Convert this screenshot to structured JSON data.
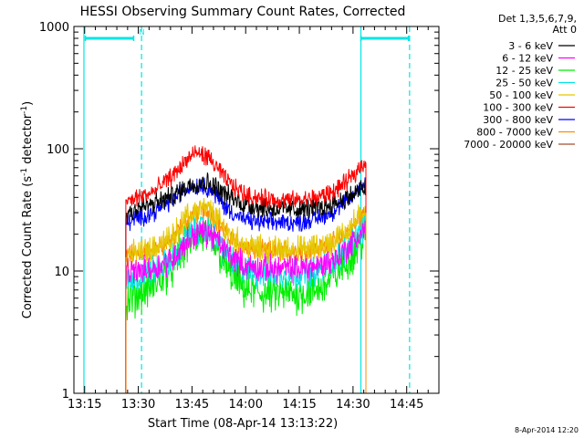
{
  "chart_data": {
    "type": "line",
    "title": "HESSI Observing Summary Count Rates, Corrected",
    "xlabel": "Start Time (08-Apr-14 13:13:22)",
    "ylabel_main": "Corrected Count Rate (s",
    "ylabel_sup1": "-1",
    "ylabel_mid": " detector",
    "ylabel_sup2": "-1",
    "ylabel_end": ")",
    "yscale": "log",
    "xlim_min": [
      13.2,
      14.9
    ],
    "ylim": [
      1,
      1000
    ],
    "grid": false,
    "legend_placement": "right",
    "x_ticks": [
      {
        "min": 795,
        "label": "13:15"
      },
      {
        "min": 810,
        "label": "13:30"
      },
      {
        "min": 825,
        "label": "13:45"
      },
      {
        "min": 840,
        "label": "14:00"
      },
      {
        "min": 855,
        "label": "14:15"
      },
      {
        "min": 870,
        "label": "14:30"
      },
      {
        "min": 885,
        "label": "14:45"
      }
    ],
    "y_ticks": [
      {
        "value": 1,
        "label": "1"
      },
      {
        "value": 10,
        "label": "10"
      },
      {
        "value": 100,
        "label": "100"
      },
      {
        "value": 1000,
        "label": "1000"
      }
    ],
    "legend_header": [
      "Det 1,3,5,6,7,9,",
      "Att 0"
    ],
    "series": [
      {
        "name": "3 - 6 keV",
        "color": "#000000",
        "x": [
          806.5,
          807,
          810,
          814,
          817,
          820,
          822,
          824,
          826,
          828,
          830,
          832,
          834,
          837,
          840,
          845,
          850,
          855,
          860,
          864,
          867,
          870,
          872,
          873.6
        ],
        "y": [
          28,
          30,
          33,
          35,
          38,
          42,
          46,
          50,
          52,
          53,
          52,
          48,
          43,
          38,
          35,
          33,
          32,
          32,
          33,
          35,
          38,
          42,
          46,
          48
        ]
      },
      {
        "name": "6 - 12 keV",
        "color": "#ff00ff",
        "x": [
          806.5,
          807,
          810,
          814,
          817,
          820,
          822,
          824,
          826,
          828,
          830,
          832,
          834,
          837,
          840,
          845,
          850,
          855,
          860,
          864,
          867,
          870,
          872,
          873.6
        ],
        "y": [
          9,
          9.5,
          10,
          10.5,
          11.5,
          13,
          15.5,
          18,
          20,
          21,
          20,
          18,
          15,
          12.5,
          11,
          10.5,
          10.5,
          10.5,
          11,
          12,
          14,
          17,
          20,
          22
        ]
      },
      {
        "name": "12 - 25 keV",
        "color": "#00ee00",
        "x": [
          806.5,
          807,
          810,
          814,
          817,
          820,
          822,
          824,
          826,
          828,
          830,
          832,
          834,
          837,
          840,
          845,
          850,
          855,
          860,
          864,
          867,
          870,
          872,
          873.6
        ],
        "y": [
          5,
          5.5,
          6.5,
          7.5,
          9,
          11,
          14,
          17,
          19,
          19.5,
          18,
          15,
          11.5,
          8.5,
          7,
          6.5,
          6.5,
          6.5,
          7,
          8.5,
          11,
          14,
          17,
          20
        ]
      },
      {
        "name": "25 - 50 keV",
        "color": "#00e5e5",
        "x": [
          806.5,
          807,
          810,
          814,
          817,
          820,
          822,
          824,
          826,
          828,
          830,
          832,
          834,
          837,
          840,
          845,
          850,
          855,
          860,
          864,
          867,
          870,
          872,
          873.6
        ],
        "y": [
          8,
          8.5,
          9,
          10,
          11,
          13,
          16,
          19,
          21,
          22,
          21,
          18,
          14.5,
          11.5,
          10,
          9.5,
          9.5,
          9.5,
          10,
          11.5,
          14,
          18,
          21,
          24
        ]
      },
      {
        "name": "50 - 100 keV",
        "color": "#e5c800",
        "x": [
          806.5,
          807,
          810,
          814,
          817,
          820,
          822,
          824,
          826,
          828,
          830,
          832,
          834,
          837,
          840,
          845,
          850,
          855,
          860,
          864,
          867,
          870,
          872,
          873.6
        ],
        "y": [
          13,
          13.5,
          14,
          15,
          17,
          20,
          24,
          28,
          31,
          32,
          31,
          27,
          22,
          18,
          16,
          15,
          15,
          15,
          15.5,
          17,
          20,
          24,
          28,
          31
        ]
      },
      {
        "name": "100 - 300 keV",
        "color": "#ff0000",
        "x": [
          806.5,
          807,
          810,
          814,
          817,
          820,
          822,
          824,
          826,
          828,
          830,
          832,
          834,
          837,
          840,
          845,
          850,
          855,
          860,
          864,
          867,
          870,
          872,
          873.6
        ],
        "y": [
          35,
          37,
          40,
          44,
          52,
          62,
          72,
          84,
          92,
          90,
          82,
          70,
          58,
          48,
          42,
          39,
          38,
          38,
          40,
          44,
          50,
          60,
          72,
          80
        ]
      },
      {
        "name": "300 - 800 keV",
        "color": "#0000ff",
        "x": [
          806.5,
          807,
          810,
          814,
          817,
          820,
          822,
          824,
          826,
          828,
          830,
          832,
          834,
          837,
          840,
          845,
          850,
          855,
          860,
          864,
          867,
          870,
          872,
          873.6
        ],
        "y": [
          24,
          25,
          27,
          30,
          34,
          39,
          44,
          48,
          50,
          50,
          47,
          41,
          34,
          29,
          26,
          25,
          25,
          25,
          27,
          30,
          35,
          41,
          48,
          53
        ]
      },
      {
        "name": "800 - 7000 keV",
        "color": "#ff8c00",
        "x": [
          806.5,
          807,
          810,
          814,
          817,
          820,
          822,
          824,
          826,
          828,
          830,
          832,
          834,
          837,
          840,
          845,
          850,
          855,
          860,
          864,
          867,
          870,
          872,
          873.6
        ],
        "y": [
          13,
          13.5,
          14,
          15,
          16.5,
          19,
          23,
          27,
          30,
          31,
          30,
          26,
          21,
          17.5,
          15,
          14.5,
          14.5,
          14.5,
          15,
          16.5,
          19,
          23,
          27,
          30
        ]
      },
      {
        "name": "7000 - 20000 keV",
        "color": "#a0522d",
        "values": []
      }
    ],
    "attenuator_bars": [
      {
        "x": [
          795.2,
          808.7
        ],
        "y": 800,
        "color": "#00e5e5",
        "flag": "N"
      },
      {
        "x": [
          872.2,
          885.5
        ],
        "y": 800,
        "color": "#00e5e5",
        "flag": ""
      }
    ],
    "markers": {
      "solid": [
        {
          "x": 794.8,
          "color": "#00e5e5"
        },
        {
          "x": 872.2,
          "color": "#00e5e5"
        }
      ],
      "dashed": [
        {
          "x": 810.9,
          "color": "#00e5e5"
        },
        {
          "x": 885.8,
          "color": "#00e5e5"
        }
      ]
    },
    "data_window": [
      806.5,
      873.6
    ],
    "footer_timestamp": "8-Apr-2014 12:20"
  }
}
